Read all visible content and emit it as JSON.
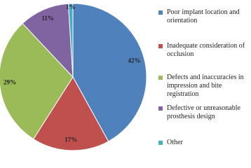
{
  "chart_data": {
    "type": "pie",
    "categories": [
      "Poor implant location and orientation",
      "Inadequate consideration of occlusion",
      "Defects and inaccuracies in impression and bite registration",
      "Defective or unreasonable prosthesis design",
      "Other"
    ],
    "values": [
      42,
      17,
      29,
      11,
      1
    ],
    "value_labels": [
      "42%",
      "17%",
      "29%",
      "11%",
      "1%"
    ],
    "colors": [
      "#4f81bd",
      "#c0504d",
      "#9bbb59",
      "#8064a2",
      "#4bacc6"
    ],
    "legend": "right"
  }
}
